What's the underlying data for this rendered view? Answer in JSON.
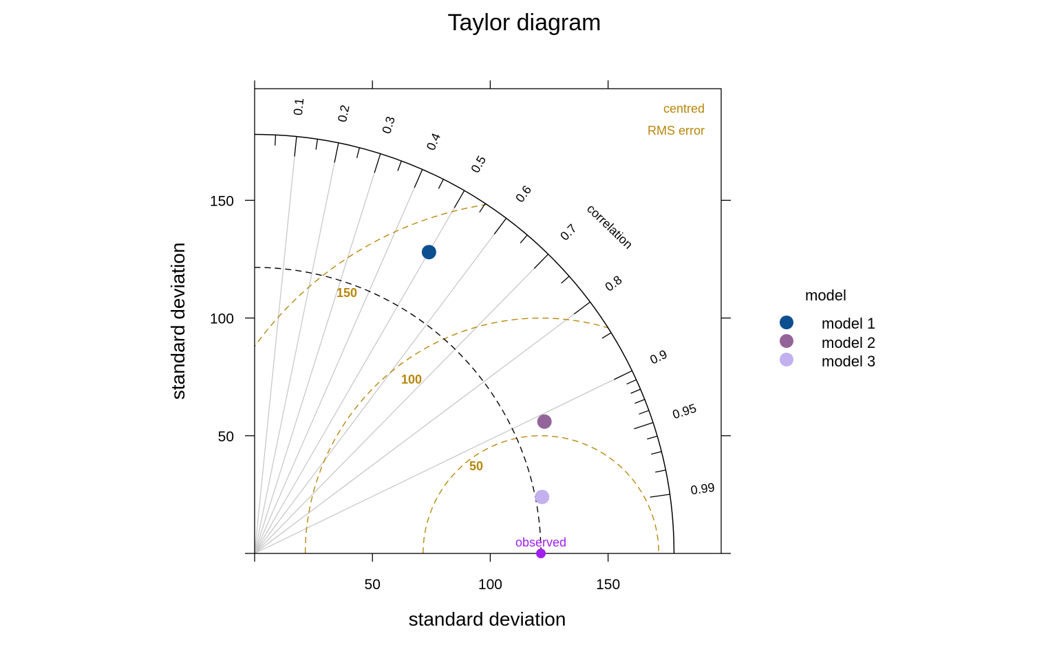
{
  "chart_data": {
    "type": "scatter",
    "subtype": "taylor diagram",
    "title": "Taylor diagram",
    "xlabel": "standard deviation",
    "ylabel": "standard deviation",
    "xlim": [
      0,
      198
    ],
    "ylim": [
      0,
      198
    ],
    "x_ticks": [
      "50",
      "100",
      "150"
    ],
    "y_ticks": [
      "50",
      "100",
      "150"
    ],
    "x_tick_values": [
      50,
      100,
      150
    ],
    "y_tick_values": [
      50,
      100,
      150
    ],
    "max_sd": 178,
    "correlation_label": "correlation",
    "correlation_ticks": [
      "0.1",
      "0.2",
      "0.3",
      "0.4",
      "0.5",
      "0.6",
      "0.7",
      "0.8",
      "0.9",
      "0.95",
      "0.99"
    ],
    "correlation_values": [
      0.1,
      0.2,
      0.3,
      0.4,
      0.5,
      0.6,
      0.7,
      0.8,
      0.9,
      0.95,
      0.99
    ],
    "rms_header": [
      "centred",
      "RMS error"
    ],
    "rms_contours": [
      {
        "label": "50",
        "value": 50
      },
      {
        "label": "100",
        "value": 100
      },
      {
        "label": "150",
        "value": 150
      }
    ],
    "observed": {
      "label": "observed",
      "sd": 121.5,
      "color": "#a020f0"
    },
    "legend_title": "model",
    "legend_position": "right",
    "grid": true,
    "series": [
      {
        "name": "model 1",
        "x": 74,
        "y": 128,
        "color": "#0b4f8f"
      },
      {
        "name": "model 2",
        "x": 123,
        "y": 56,
        "color": "#93649a"
      },
      {
        "name": "model 3",
        "x": 122,
        "y": 24,
        "color": "#c2b1ee"
      }
    ]
  }
}
